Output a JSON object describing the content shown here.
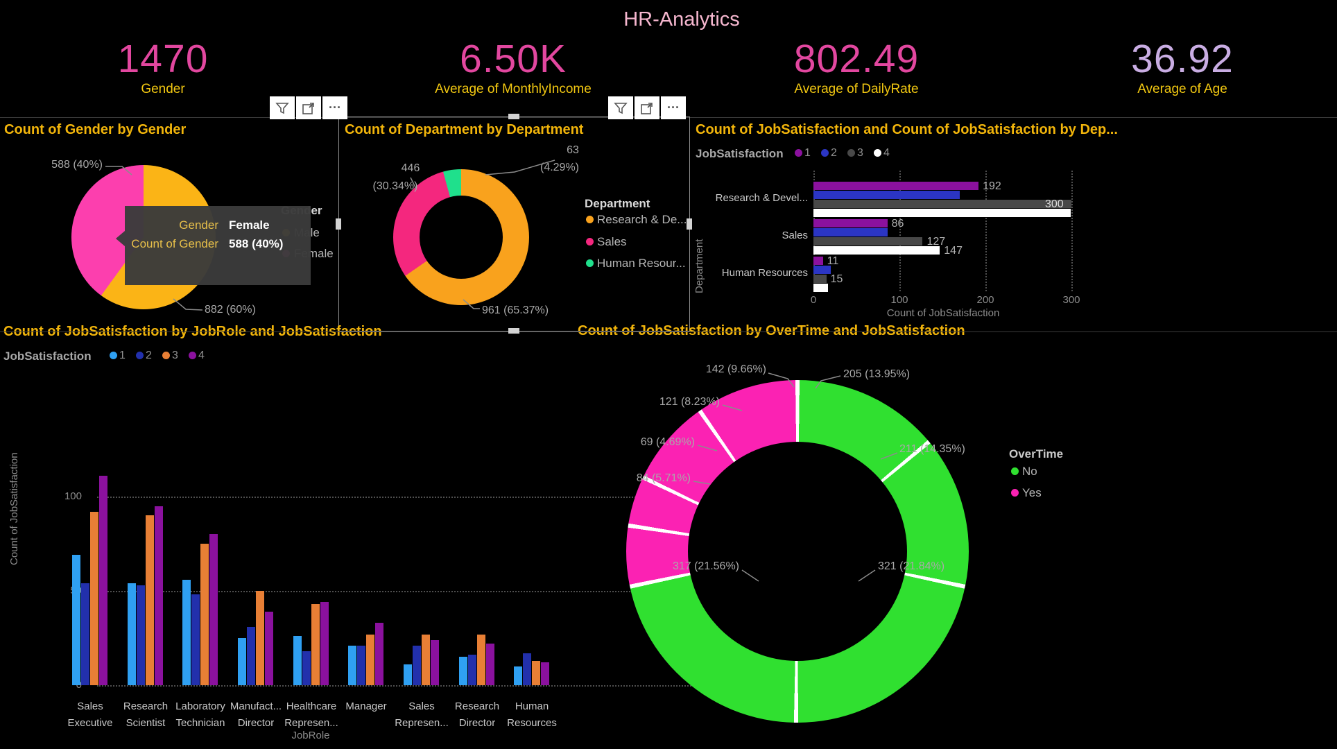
{
  "header": {
    "title": "HR-Analytics"
  },
  "kpis": [
    {
      "value": "1470",
      "label": "Gender",
      "color": "#E2479F"
    },
    {
      "value": "6.50K",
      "label": "Average of MonthlyIncome",
      "color": "#E2479F"
    },
    {
      "value": "802.49",
      "label": "Average of DailyRate",
      "color": "#E2479F"
    },
    {
      "value": "36.92",
      "label": "Average of Age",
      "color": "#C9ADE3"
    }
  ],
  "toolbar": {
    "more_label": "···"
  },
  "gender_pie": {
    "title": "Count of Gender by Gender",
    "legend_title": "Gender",
    "legend": [
      {
        "label": "Male"
      },
      {
        "label": "Female"
      }
    ],
    "callout_female": "588 (40%)",
    "callout_male": "882 (60%)",
    "tooltip": [
      {
        "label": "Gender",
        "value": "Female"
      },
      {
        "label": "Count of Gender",
        "value": "588 (40%)"
      }
    ]
  },
  "department_donut": {
    "title": "Count of Department by Department",
    "legend_title": "Department",
    "legend": [
      "Research & De...",
      "Sales",
      "Human Resour..."
    ],
    "callout_hr_1": "63",
    "callout_hr_2": "(4.29%)",
    "callout_sales_1": "446",
    "callout_sales_2": "(30.34%)",
    "callout_rd": "961 (65.37%)"
  },
  "dept_bar": {
    "title": "Count of JobSatisfaction and Count of JobSatisfaction by Dep...",
    "legend_title": "JobSatisfaction",
    "x_title": "Count of JobSatisfaction",
    "y_title": "Department",
    "x_ticks": [
      "0",
      "100",
      "200",
      "300"
    ]
  },
  "jobrole_bar": {
    "title": "Count of JobSatisfaction by JobRole and JobSatisfaction",
    "legend_title": "JobSatisfaction",
    "x_title": "JobRole",
    "y_title": "Count of JobSatisfaction",
    "y_ticks": [
      "0",
      "50",
      "100"
    ]
  },
  "overtime_donut": {
    "title": "Count of JobSatisfaction by OverTime and JobSatisfaction",
    "legend_title": "OverTime",
    "legend": [
      {
        "label": "No"
      },
      {
        "label": "Yes"
      }
    ]
  },
  "colors": {
    "background": "#000000",
    "page_title": "#F6B7CF",
    "kpi_pink": "#E2479F",
    "kpi_lavender": "#C9ADE3",
    "chart_title_yellow": "#F2B50B",
    "kpi_label_yellow": "#F2C811"
  },
  "chart_data": [
    {
      "id": "gender_pie",
      "type": "pie",
      "title": "Count of Gender by Gender",
      "slices": [
        {
          "label": "Male",
          "value": 882,
          "display": "882 (60%)",
          "color": "#FBB416"
        },
        {
          "label": "Female",
          "value": 588,
          "display": "588 (40%)",
          "color": "#FC3FAE"
        }
      ]
    },
    {
      "id": "department_donut",
      "type": "pie",
      "title": "Count of Department by Department",
      "slices": [
        {
          "label": "Research & Development",
          "value": 961,
          "display": "961 (65.37%)",
          "color": "#F9A21D"
        },
        {
          "label": "Sales",
          "value": 446,
          "display": "446 (30.34%)",
          "color": "#F4277E"
        },
        {
          "label": "Human Resources",
          "value": 63,
          "display": "63 (4.29%)",
          "color": "#1FE08C"
        }
      ]
    },
    {
      "id": "dept_bar",
      "type": "bar",
      "orientation": "horizontal",
      "title": "Count of JobSatisfaction and Count of JobSatisfaction by Dep...",
      "categories": [
        "Research & Devel...",
        "Sales",
        "Human Resources"
      ],
      "series": [
        {
          "name": "1",
          "color": "#8B119E",
          "values": [
            192,
            86,
            11
          ],
          "labels": [
            "192",
            "86",
            "11"
          ]
        },
        {
          "name": "2",
          "color": "#2B35C4",
          "values": [
            170,
            86,
            20
          ],
          "labels": [
            null,
            null,
            null
          ]
        },
        {
          "name": "3",
          "color": "#484848",
          "values": [
            300,
            127,
            15
          ],
          "labels": [
            "300",
            "127",
            "15"
          ]
        },
        {
          "name": "4",
          "color": "#FFFFFF",
          "values": [
            299,
            147,
            17
          ],
          "labels": [
            null,
            "147",
            null
          ]
        }
      ],
      "xlim": [
        0,
        300
      ],
      "xlabel": "Count of JobSatisfaction",
      "ylabel": "Department",
      "grid": true
    },
    {
      "id": "jobrole_bar",
      "type": "bar",
      "orientation": "vertical",
      "title": "Count of JobSatisfaction by JobRole and JobSatisfaction",
      "categories": [
        "Sales\nExecutive",
        "Research\nScientist",
        "Laboratory\nTechnician",
        "Manufact...\nDirector",
        "Healthcare\nRepresen...",
        "Manager",
        "Sales\nRepresen...",
        "Research\nDirector",
        "Human\nResources"
      ],
      "series": [
        {
          "name": "1",
          "color": "#2FA0F2",
          "values": [
            69,
            54,
            56,
            25,
            26,
            21,
            11,
            15,
            10
          ]
        },
        {
          "name": "2",
          "color": "#2230AC",
          "values": [
            54,
            53,
            48,
            31,
            18,
            21,
            21,
            16,
            17
          ]
        },
        {
          "name": "3",
          "color": "#E87F35",
          "values": [
            92,
            90,
            75,
            50,
            43,
            27,
            27,
            27,
            13
          ]
        },
        {
          "name": "4",
          "color": "#8B119E",
          "values": [
            111,
            95,
            80,
            39,
            44,
            33,
            24,
            22,
            12
          ]
        }
      ],
      "ylim": [
        0,
        120
      ],
      "yticks": [
        0,
        50,
        100
      ],
      "xlabel": "JobRole",
      "ylabel": "Count of JobSatisfaction",
      "grid": true
    },
    {
      "id": "overtime_donut",
      "type": "pie",
      "title": "Count of JobSatisfaction by OverTime and JobSatisfaction",
      "slices": [
        {
          "label": "No",
          "value": 205,
          "display": "205 (13.95%)",
          "color": "#30E030"
        },
        {
          "label": "No",
          "value": 211,
          "display": "211 (14.35%)",
          "color": "#30E030"
        },
        {
          "label": "No",
          "value": 321,
          "display": "321 (21.84%)",
          "color": "#30E030"
        },
        {
          "label": "No",
          "value": 317,
          "display": "317 (21.56%)",
          "color": "#30E030"
        },
        {
          "label": "Yes",
          "value": 84,
          "display": "84 (5.71%)",
          "color": "#FB22B3"
        },
        {
          "label": "Yes",
          "value": 69,
          "display": "69 (4.69%)",
          "color": "#FB22B3"
        },
        {
          "label": "Yes",
          "value": 121,
          "display": "121 (8.23%)",
          "color": "#FB22B3"
        },
        {
          "label": "Yes",
          "value": 142,
          "display": "142 (9.66%)",
          "color": "#FB22B3"
        }
      ]
    }
  ]
}
